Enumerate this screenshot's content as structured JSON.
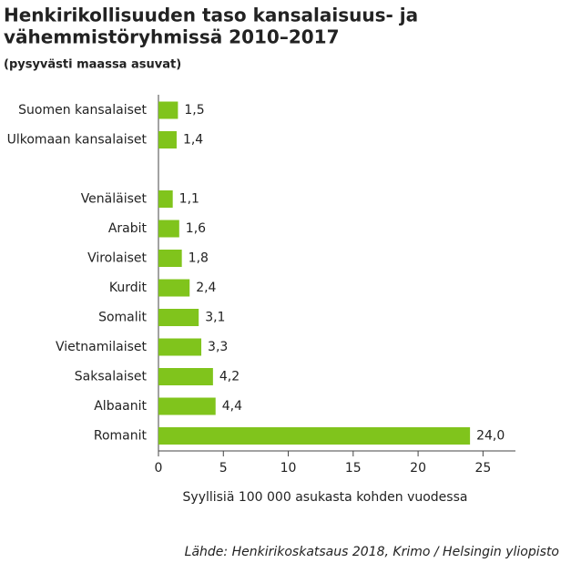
{
  "chart_data": {
    "type": "bar",
    "orientation": "horizontal",
    "title": [
      "Henkirikollisuuden taso kansalaisuus- ja",
      "vähemmistöryhmissä 2010–2017"
    ],
    "subtitle": "(pysyvästi maassa asuvat)",
    "categories": [
      "Suomen kansalaiset",
      "Ulkomaan kansalaiset",
      null,
      "Venäläiset",
      "Arabit",
      "Virolaiset",
      "Kurdit",
      "Somalit",
      "Vietnamilaiset",
      "Saksalaiset",
      "Albaanit",
      "Romanit"
    ],
    "values": [
      1.5,
      1.4,
      null,
      1.1,
      1.6,
      1.8,
      2.4,
      3.1,
      3.3,
      4.2,
      4.4,
      24.0
    ],
    "value_labels": [
      "1,5",
      "1,4",
      null,
      "1,1",
      "1,6",
      "1,8",
      "2,4",
      "3,1",
      "3,3",
      "4,2",
      "4,4",
      "24,0"
    ],
    "color": "#80c41c",
    "xlim": [
      0,
      27.5
    ],
    "xticks": [
      0,
      5,
      10,
      15,
      20,
      25
    ],
    "xlabel": "Syyllisiä 100 000 asukasta kohden vuodessa",
    "source": "Lähde: Henkirikoskatsaus 2018, Krimo / Helsingin yliopisto"
  }
}
